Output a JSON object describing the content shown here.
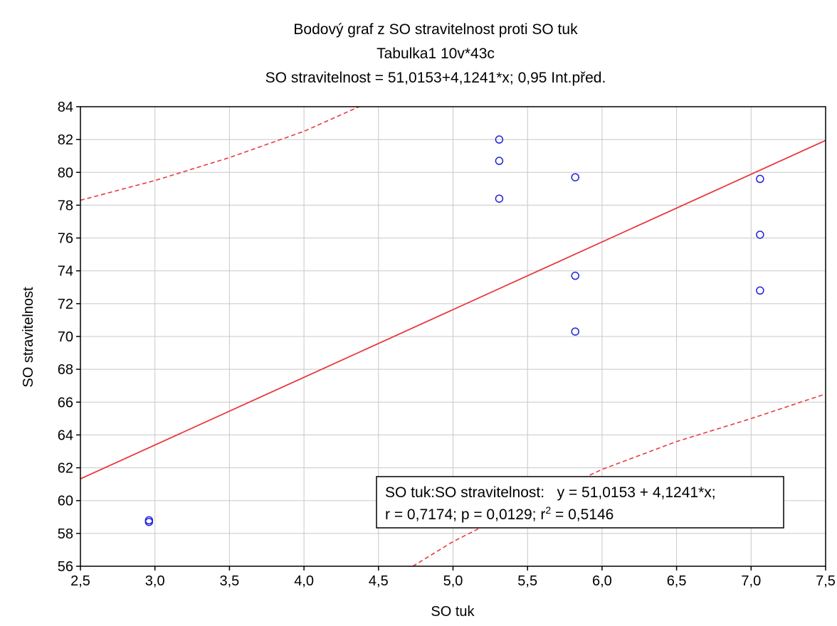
{
  "chart_data": {
    "type": "scatter",
    "title": [
      "Bodový graf z SO stravitelnost proti SO tuk",
      "Tabulka1 10v*43c",
      "SO stravitelnost = 51,0153+4,1241*x; 0,95 Int.před."
    ],
    "xlabel": "SO tuk",
    "ylabel": "SO stravitelnost",
    "xlim": [
      2.5,
      7.5
    ],
    "ylim": [
      56,
      84
    ],
    "x_ticks": [
      "2,5",
      "3,0",
      "3,5",
      "4,0",
      "4,5",
      "5,0",
      "5,5",
      "6,0",
      "6,5",
      "7,0",
      "7,5"
    ],
    "y_ticks": [
      "56",
      "58",
      "60",
      "62",
      "64",
      "66",
      "68",
      "70",
      "72",
      "74",
      "76",
      "78",
      "80",
      "82",
      "84"
    ],
    "grid": true,
    "points": [
      {
        "x": 2.96,
        "y": 58.8
      },
      {
        "x": 2.96,
        "y": 58.7
      },
      {
        "x": 5.31,
        "y": 82.0
      },
      {
        "x": 5.31,
        "y": 80.7
      },
      {
        "x": 5.31,
        "y": 78.4
      },
      {
        "x": 5.82,
        "y": 79.7
      },
      {
        "x": 5.82,
        "y": 73.7
      },
      {
        "x": 5.82,
        "y": 70.3
      },
      {
        "x": 7.06,
        "y": 79.6
      },
      {
        "x": 7.06,
        "y": 76.2
      },
      {
        "x": 7.06,
        "y": 72.8
      }
    ],
    "regression": {
      "intercept": 51.0153,
      "slope": 4.1241
    },
    "prediction_upper": [
      {
        "x": 2.5,
        "y": 78.3
      },
      {
        "x": 3.0,
        "y": 79.5
      },
      {
        "x": 3.5,
        "y": 80.9
      },
      {
        "x": 4.0,
        "y": 82.5
      },
      {
        "x": 4.37,
        "y": 84.0
      }
    ],
    "prediction_lower": [
      {
        "x": 4.73,
        "y": 56.0
      },
      {
        "x": 5.0,
        "y": 57.5
      },
      {
        "x": 5.5,
        "y": 59.8
      },
      {
        "x": 6.0,
        "y": 61.9
      },
      {
        "x": 6.5,
        "y": 63.6
      },
      {
        "x": 7.0,
        "y": 65.0
      },
      {
        "x": 7.5,
        "y": 66.5
      }
    ],
    "stats_box": {
      "line1": "SO tuk:SO stravitelnost:   y = 51,0153 + 4,1241*x;",
      "line2_prefix": "r = 0,7174; p = 0,0129; r",
      "line2_sup": "2",
      "line2_suffix": " = 0,5146"
    },
    "colors": {
      "points": "#2222dd",
      "line": "#e8393f",
      "band": "#e8393f",
      "grid": "#c8c8c8"
    }
  }
}
